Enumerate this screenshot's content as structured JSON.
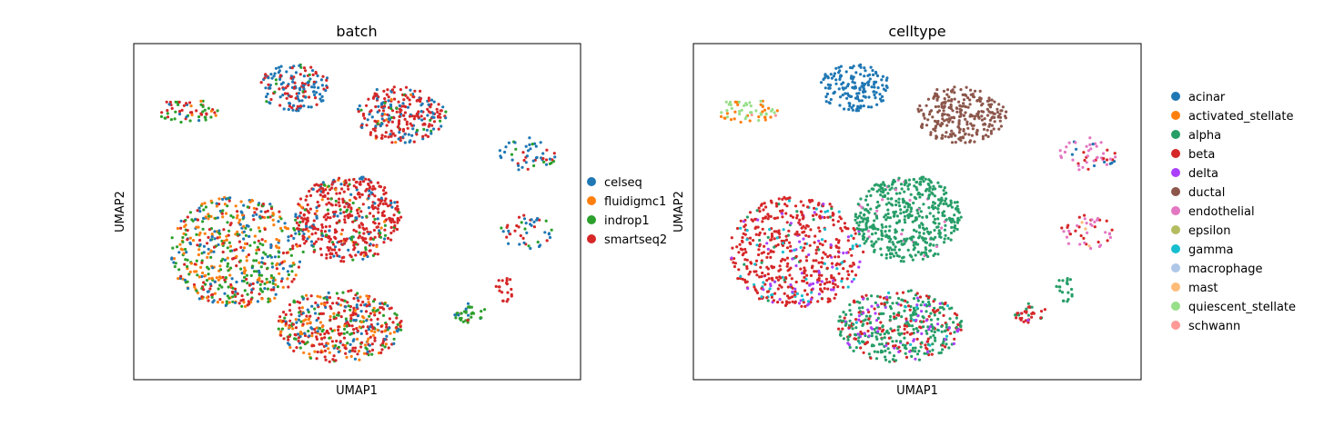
{
  "chart_data": [
    {
      "type": "scatter",
      "title": "batch",
      "xlabel": "UMAP1",
      "ylabel": "UMAP2",
      "grid": false,
      "ticks": false,
      "legend_placement": "right",
      "colors": {
        "celseq": "#1f77b4",
        "fluidigmc1": "#ff7f0e",
        "indrop1": "#2ca02c",
        "smartseq2": "#d62728"
      },
      "legend": [
        "celseq",
        "fluidigmc1",
        "indrop1",
        "smartseq2"
      ],
      "clusters": [
        {
          "cx": 0.12,
          "cy": 0.2,
          "rx": 0.07,
          "ry": 0.035,
          "n": 60,
          "mix": {
            "indrop1": 0.55,
            "smartseq2": 0.25,
            "celseq": 0.1,
            "fluidigmc1": 0.1
          }
        },
        {
          "cx": 0.36,
          "cy": 0.13,
          "rx": 0.08,
          "ry": 0.07,
          "n": 160,
          "mix": {
            "celseq": 0.6,
            "smartseq2": 0.35,
            "indrop1": 0.05
          }
        },
        {
          "cx": 0.6,
          "cy": 0.21,
          "rx": 0.1,
          "ry": 0.09,
          "n": 260,
          "mix": {
            "smartseq2": 0.6,
            "celseq": 0.3,
            "fluidigmc1": 0.05,
            "indrop1": 0.05
          }
        },
        {
          "cx": 0.23,
          "cy": 0.62,
          "rx": 0.15,
          "ry": 0.17,
          "n": 550,
          "mix": {
            "fluidigmc1": 0.3,
            "indrop1": 0.3,
            "celseq": 0.2,
            "smartseq2": 0.2
          }
        },
        {
          "cx": 0.48,
          "cy": 0.52,
          "rx": 0.12,
          "ry": 0.13,
          "n": 480,
          "mix": {
            "smartseq2": 0.7,
            "celseq": 0.15,
            "indrop1": 0.1,
            "fluidigmc1": 0.05
          }
        },
        {
          "cx": 0.46,
          "cy": 0.84,
          "rx": 0.14,
          "ry": 0.11,
          "n": 450,
          "mix": {
            "smartseq2": 0.45,
            "fluidigmc1": 0.25,
            "indrop1": 0.15,
            "celseq": 0.15
          }
        },
        {
          "cx": 0.88,
          "cy": 0.33,
          "rx": 0.07,
          "ry": 0.05,
          "n": 50,
          "mix": {
            "celseq": 0.5,
            "smartseq2": 0.3,
            "indrop1": 0.2
          }
        },
        {
          "cx": 0.88,
          "cy": 0.56,
          "rx": 0.06,
          "ry": 0.05,
          "n": 45,
          "mix": {
            "celseq": 0.4,
            "smartseq2": 0.4,
            "indrop1": 0.2
          }
        },
        {
          "cx": 0.75,
          "cy": 0.8,
          "rx": 0.04,
          "ry": 0.03,
          "n": 35,
          "mix": {
            "indrop1": 0.7,
            "celseq": 0.2,
            "smartseq2": 0.1
          }
        },
        {
          "cx": 0.83,
          "cy": 0.73,
          "rx": 0.02,
          "ry": 0.04,
          "n": 20,
          "mix": {
            "smartseq2": 1.0
          }
        }
      ]
    },
    {
      "type": "scatter",
      "title": "celltype",
      "xlabel": "UMAP1",
      "ylabel": "UMAP2",
      "grid": false,
      "ticks": false,
      "legend_placement": "right",
      "colors": {
        "acinar": "#1f77b4",
        "activated_stellate": "#ff7f0e",
        "alpha": "#279e68",
        "beta": "#d62728",
        "delta": "#aa40fc",
        "ductal": "#8c564b",
        "endothelial": "#e377c2",
        "epsilon": "#b5bd61",
        "gamma": "#17becf",
        "macrophage": "#aec7e8",
        "mast": "#ffbb78",
        "quiescent_stellate": "#98df8a",
        "schwann": "#ff9896"
      },
      "legend": [
        "acinar",
        "activated_stellate",
        "alpha",
        "beta",
        "delta",
        "ductal",
        "endothelial",
        "epsilon",
        "gamma",
        "macrophage",
        "mast",
        "quiescent_stellate",
        "schwann"
      ],
      "clusters": [
        {
          "cx": 0.12,
          "cy": 0.2,
          "rx": 0.07,
          "ry": 0.035,
          "n": 60,
          "mix": {
            "activated_stellate": 0.55,
            "quiescent_stellate": 0.4,
            "schwann": 0.05
          }
        },
        {
          "cx": 0.36,
          "cy": 0.13,
          "rx": 0.08,
          "ry": 0.07,
          "n": 160,
          "mix": {
            "acinar": 1.0
          }
        },
        {
          "cx": 0.6,
          "cy": 0.21,
          "rx": 0.1,
          "ry": 0.09,
          "n": 260,
          "mix": {
            "ductal": 1.0
          }
        },
        {
          "cx": 0.23,
          "cy": 0.62,
          "rx": 0.15,
          "ry": 0.17,
          "n": 550,
          "mix": {
            "beta": 0.75,
            "delta": 0.1,
            "gamma": 0.1,
            "alpha": 0.05
          }
        },
        {
          "cx": 0.48,
          "cy": 0.52,
          "rx": 0.12,
          "ry": 0.13,
          "n": 480,
          "mix": {
            "alpha": 0.95,
            "endothelial": 0.05
          }
        },
        {
          "cx": 0.46,
          "cy": 0.84,
          "rx": 0.14,
          "ry": 0.11,
          "n": 450,
          "mix": {
            "alpha": 0.6,
            "beta": 0.25,
            "delta": 0.1,
            "gamma": 0.05
          }
        },
        {
          "cx": 0.88,
          "cy": 0.33,
          "rx": 0.07,
          "ry": 0.05,
          "n": 50,
          "mix": {
            "endothelial": 0.5,
            "beta": 0.3,
            "acinar": 0.2
          }
        },
        {
          "cx": 0.88,
          "cy": 0.56,
          "rx": 0.06,
          "ry": 0.05,
          "n": 45,
          "mix": {
            "endothelial": 0.5,
            "beta": 0.4,
            "mast": 0.1
          }
        },
        {
          "cx": 0.75,
          "cy": 0.8,
          "rx": 0.04,
          "ry": 0.03,
          "n": 35,
          "mix": {
            "beta": 0.6,
            "alpha": 0.3,
            "delta": 0.1
          }
        },
        {
          "cx": 0.83,
          "cy": 0.73,
          "rx": 0.02,
          "ry": 0.04,
          "n": 20,
          "mix": {
            "alpha": 1.0
          }
        }
      ]
    }
  ]
}
